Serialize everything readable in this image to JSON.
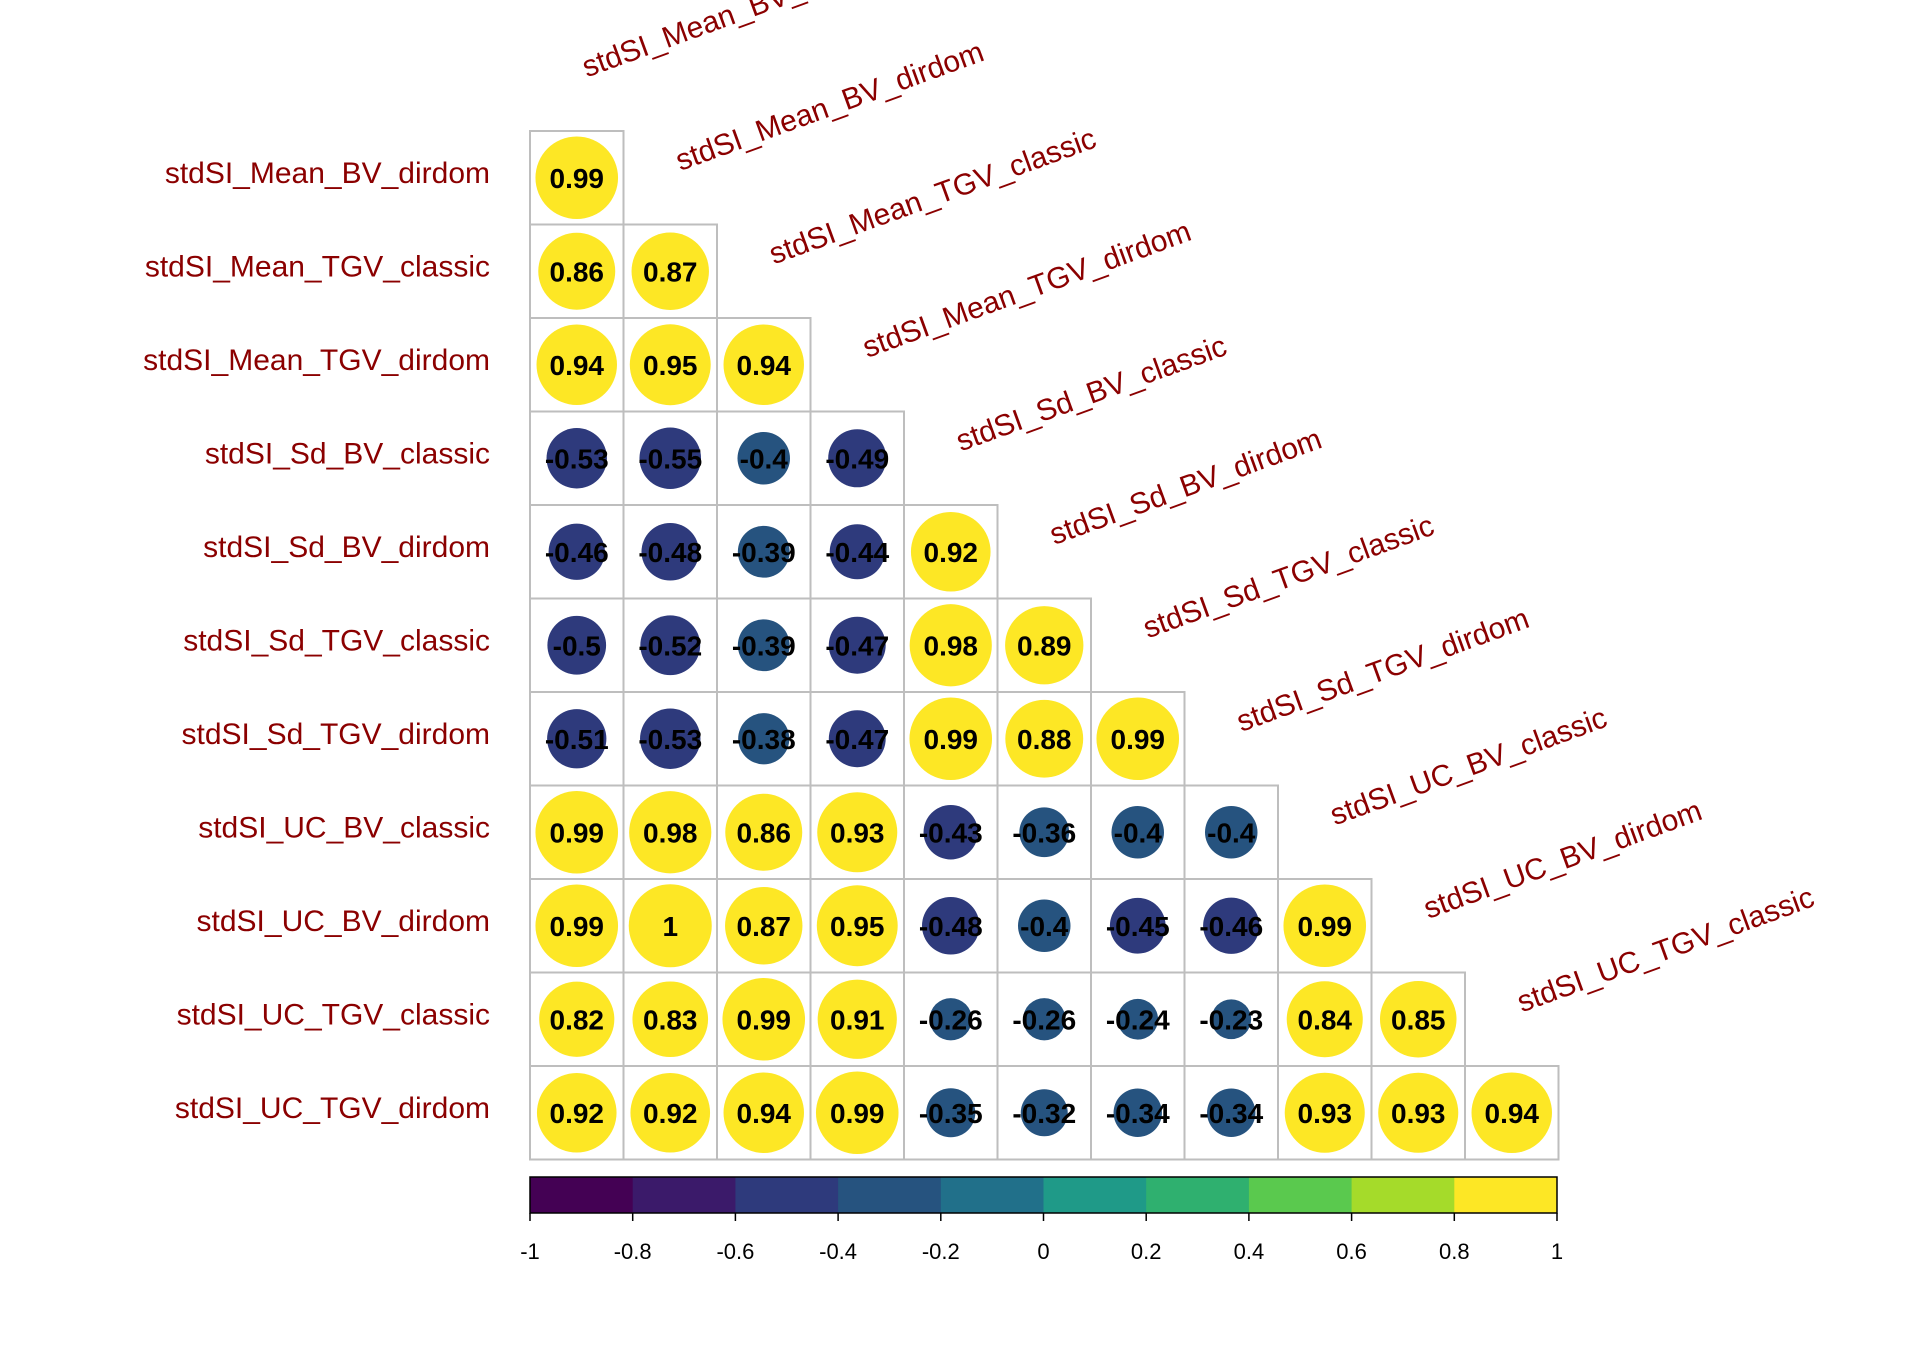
{
  "chart_data": {
    "type": "heatmap",
    "variables": [
      "stdSI_Mean_BV_classic",
      "stdSI_Mean_BV_dirdom",
      "stdSI_Mean_TGV_classic",
      "stdSI_Mean_TGV_dirdom",
      "stdSI_Sd_BV_classic",
      "stdSI_Sd_BV_dirdom",
      "stdSI_Sd_TGV_classic",
      "stdSI_Sd_TGV_dirdom",
      "stdSI_UC_BV_classic",
      "stdSI_UC_BV_dirdom",
      "stdSI_UC_TGV_classic",
      "stdSI_UC_TGV_dirdom"
    ],
    "row_labels": [
      "stdSI_Mean_BV_dirdom",
      "stdSI_Mean_TGV_classic",
      "stdSI_Mean_TGV_dirdom",
      "stdSI_Sd_BV_classic",
      "stdSI_Sd_BV_dirdom",
      "stdSI_Sd_TGV_classic",
      "stdSI_Sd_TGV_dirdom",
      "stdSI_UC_BV_classic",
      "stdSI_UC_BV_dirdom",
      "stdSI_UC_TGV_classic",
      "stdSI_UC_TGV_dirdom"
    ],
    "col_labels": [
      "stdSI_Mean_BV_classic",
      "stdSI_Mean_BV_dirdom",
      "stdSI_Mean_TGV_classic",
      "stdSI_Mean_TGV_dirdom",
      "stdSI_Sd_BV_classic",
      "stdSI_Sd_BV_dirdom",
      "stdSI_Sd_TGV_classic",
      "stdSI_Sd_TGV_dirdom",
      "stdSI_UC_BV_classic",
      "stdSI_UC_BV_dirdom",
      "stdSI_UC_TGV_classic"
    ],
    "lower_triangle_values": [
      [
        0.99
      ],
      [
        0.86,
        0.87
      ],
      [
        0.94,
        0.95,
        0.94
      ],
      [
        -0.53,
        -0.55,
        -0.4,
        -0.49
      ],
      [
        -0.46,
        -0.48,
        -0.39,
        -0.44,
        0.92
      ],
      [
        -0.5,
        -0.52,
        -0.39,
        -0.47,
        0.98,
        0.89
      ],
      [
        -0.51,
        -0.53,
        -0.38,
        -0.47,
        0.99,
        0.88,
        0.99
      ],
      [
        0.99,
        0.98,
        0.86,
        0.93,
        -0.43,
        -0.36,
        -0.4,
        -0.4
      ],
      [
        0.99,
        1,
        0.87,
        0.95,
        -0.48,
        -0.4,
        -0.45,
        -0.46,
        0.99
      ],
      [
        0.82,
        0.83,
        0.99,
        0.91,
        -0.26,
        -0.26,
        -0.24,
        -0.23,
        0.84,
        0.85
      ],
      [
        0.92,
        0.92,
        0.94,
        0.99,
        -0.35,
        -0.32,
        -0.34,
        -0.34,
        0.93,
        0.93,
        0.94
      ]
    ],
    "cell_text": [
      [
        "0.99"
      ],
      [
        "0.86",
        "0.87"
      ],
      [
        "0.94",
        "0.95",
        "0.94"
      ],
      [
        "-0.53",
        "-0.55",
        "-0.4",
        "-0.49"
      ],
      [
        "-0.46",
        "-0.48",
        "-0.39",
        "-0.44",
        "0.92"
      ],
      [
        "-0.5",
        "-0.52",
        "-0.39",
        "-0.47",
        "0.98",
        "0.89"
      ],
      [
        "-0.51",
        "-0.53",
        "-0.38",
        "-0.47",
        "0.99",
        "0.88",
        "0.99"
      ],
      [
        "0.99",
        "0.98",
        "0.86",
        "0.93",
        "-0.43",
        "-0.36",
        "-0.4",
        "-0.4"
      ],
      [
        "0.99",
        "1",
        "0.87",
        "0.95",
        "-0.48",
        "-0.4",
        "-0.45",
        "-0.46",
        "0.99"
      ],
      [
        "0.82",
        "0.83",
        "0.99",
        "0.91",
        "-0.26",
        "-0.26",
        "-0.24",
        "-0.23",
        "0.84",
        "0.85"
      ],
      [
        "0.92",
        "0.92",
        "0.94",
        "0.99",
        "-0.35",
        "-0.32",
        "-0.34",
        "-0.34",
        "0.93",
        "0.93",
        "0.94"
      ]
    ],
    "colorbar": {
      "range": [
        -1,
        1
      ],
      "ticks": [
        "-1",
        "-0.8",
        "-0.6",
        "-0.4",
        "-0.2",
        "0",
        "0.2",
        "0.4",
        "0.6",
        "0.8",
        "1"
      ],
      "bins": [
        "#440154",
        "#3B1A6A",
        "#2E3A7C",
        "#26537F",
        "#21708A",
        "#1F9A88",
        "#2FB06F",
        "#5AC94E",
        "#A5DB2A",
        "#FDE725"
      ],
      "placement": "bottom"
    },
    "label_color": "#8B0000",
    "grid_color": "#BEBEBE",
    "palette": "viridis",
    "cell_shape": "circle",
    "layout": "lower-triangle"
  }
}
